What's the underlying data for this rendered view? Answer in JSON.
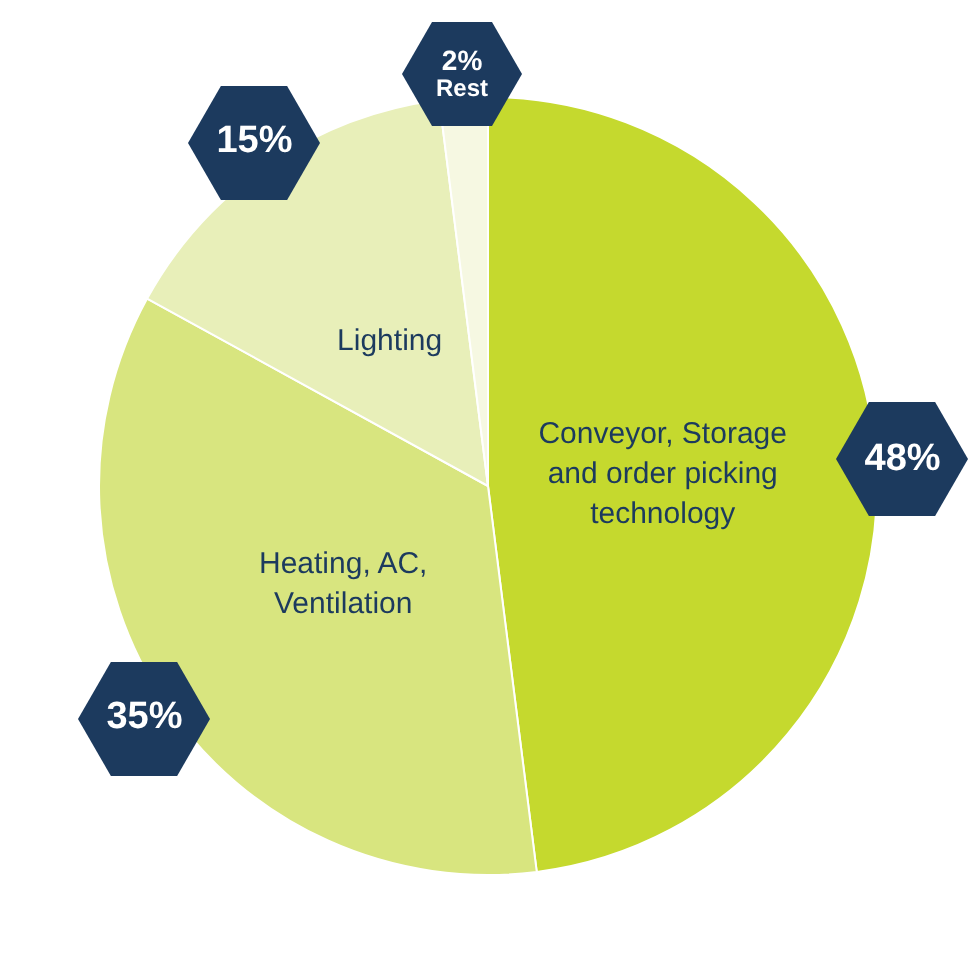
{
  "chart_data": {
    "type": "pie",
    "categories": [
      "Conveyor, Storage and order picking technology",
      "Heating, AC, Ventilation",
      "Lighting",
      "Rest"
    ],
    "values": [
      48,
      35,
      15,
      2
    ],
    "colors": [
      "#c5d92e",
      "#d8e57f",
      "#e8efb9",
      "#f6f8e2"
    ],
    "value_labels": [
      "48%",
      "35%",
      "15%",
      "2%"
    ],
    "legend": false
  }
}
